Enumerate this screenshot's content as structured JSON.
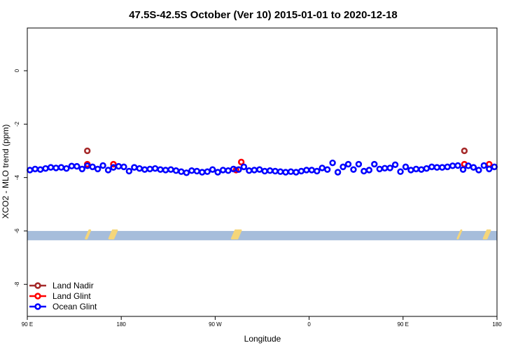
{
  "chart_data": {
    "type": "scatter",
    "title": "47.5S-42.5S October (Ver 10)   2015-01-01 to 2020-12-18",
    "xlabel": "Longitude",
    "ylabel": "XCO2 - MLO trend (ppm)",
    "xlim": [
      0,
      360
    ],
    "ylim": [
      -9.2,
      1.6
    ],
    "x_ticks": [
      {
        "value": 0,
        "label": "90 E"
      },
      {
        "value": 72,
        "label": "180"
      },
      {
        "value": 144,
        "label": "90 W"
      },
      {
        "value": 216,
        "label": "0"
      },
      {
        "value": 288,
        "label": "90 E"
      },
      {
        "value": 360,
        "label": "180"
      }
    ],
    "y_ticks": [
      {
        "value": 0,
        "label": "0"
      },
      {
        "value": -2,
        "label": "-2"
      },
      {
        "value": -4,
        "label": "-4"
      },
      {
        "value": -6,
        "label": "-6"
      },
      {
        "value": -8,
        "label": "-8"
      }
    ],
    "grid": false,
    "legend_position": "bottom-left",
    "band": {
      "y_range": [
        -6.35,
        -6.0
      ],
      "color": "#a6bddb"
    },
    "land_markers": {
      "color": "#f5d67a",
      "x": [
        46,
        46.5,
        64,
        65,
        66,
        67,
        158,
        159,
        160,
        161,
        162,
        331,
        351,
        352,
        353
      ]
    },
    "series": [
      {
        "name": "Land Nadir",
        "color": "#a52a2a",
        "x": [
          46,
          335
        ],
        "y": [
          -3.0,
          -3.0
        ]
      },
      {
        "name": "Land Glint",
        "color": "#ff0000",
        "x": [
          46,
          66,
          160,
          164,
          335,
          354
        ],
        "y": [
          -3.5,
          -3.5,
          -3.72,
          -3.42,
          -3.5,
          -3.5
        ]
      },
      {
        "name": "Ocean Glint",
        "color": "#0000ff",
        "x": [
          2,
          6,
          10,
          14,
          18,
          22,
          26,
          30,
          34,
          38,
          42,
          46,
          50,
          54,
          58,
          62,
          66,
          70,
          74,
          78,
          82,
          86,
          90,
          94,
          98,
          102,
          106,
          110,
          114,
          118,
          122,
          126,
          130,
          134,
          138,
          142,
          146,
          150,
          154,
          158,
          162,
          166,
          170,
          174,
          178,
          182,
          186,
          190,
          194,
          198,
          202,
          206,
          210,
          214,
          218,
          222,
          226,
          230,
          234,
          238,
          242,
          246,
          250,
          254,
          258,
          262,
          266,
          270,
          274,
          278,
          282,
          286,
          290,
          294,
          298,
          302,
          306,
          310,
          314,
          318,
          322,
          326,
          330,
          334,
          338,
          342,
          346,
          350,
          354,
          358
        ],
        "y": [
          -3.72,
          -3.68,
          -3.7,
          -3.66,
          -3.62,
          -3.64,
          -3.62,
          -3.66,
          -3.57,
          -3.58,
          -3.68,
          -3.56,
          -3.6,
          -3.68,
          -3.55,
          -3.72,
          -3.62,
          -3.58,
          -3.6,
          -3.76,
          -3.62,
          -3.66,
          -3.7,
          -3.68,
          -3.66,
          -3.7,
          -3.72,
          -3.7,
          -3.74,
          -3.78,
          -3.82,
          -3.74,
          -3.76,
          -3.8,
          -3.78,
          -3.7,
          -3.8,
          -3.72,
          -3.74,
          -3.68,
          -3.7,
          -3.6,
          -3.74,
          -3.72,
          -3.7,
          -3.76,
          -3.74,
          -3.76,
          -3.78,
          -3.8,
          -3.78,
          -3.8,
          -3.76,
          -3.72,
          -3.72,
          -3.76,
          -3.64,
          -3.7,
          -3.45,
          -3.8,
          -3.6,
          -3.5,
          -3.7,
          -3.5,
          -3.76,
          -3.72,
          -3.5,
          -3.68,
          -3.65,
          -3.64,
          -3.52,
          -3.78,
          -3.6,
          -3.72,
          -3.68,
          -3.7,
          -3.66,
          -3.6,
          -3.62,
          -3.62,
          -3.6,
          -3.56,
          -3.55,
          -3.7,
          -3.56,
          -3.62,
          -3.72,
          -3.55,
          -3.68,
          -3.6
        ]
      }
    ]
  }
}
